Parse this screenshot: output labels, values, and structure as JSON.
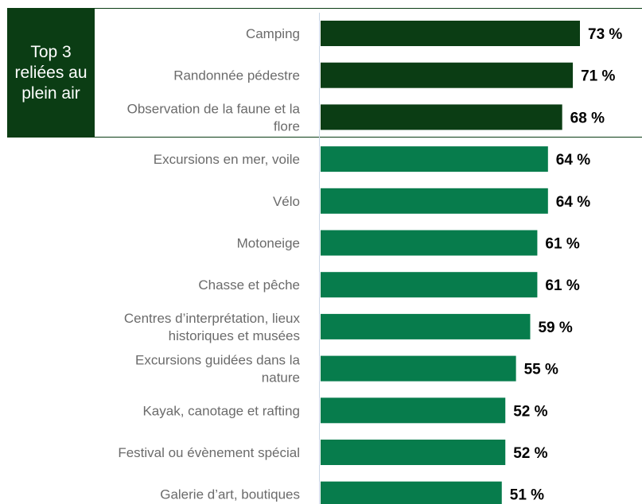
{
  "top3_box": {
    "label": "Top 3 reliées au plein air"
  },
  "colors": {
    "top3_bar": "#0b3d14",
    "other_bar": "#077c4c",
    "top3_box": "#0b3d14",
    "axis": "#c9d6e6"
  },
  "chart_data": {
    "type": "bar",
    "orientation": "horizontal",
    "categories": [
      "Camping",
      "Randonnée pédestre",
      "Observation de la faune et la flore",
      "Excursions en mer, voile",
      "Vélo",
      "Motoneige",
      "Chasse et pêche",
      "Centres d’interprétation, lieux historiques et musées",
      "Excursions guidées dans la nature",
      "Kayak, canotage et rafting",
      "Festival ou évènement spécial",
      "Galerie d’art, boutiques"
    ],
    "values": [
      73,
      71,
      68,
      64,
      64,
      61,
      61,
      59,
      55,
      52,
      52,
      51
    ],
    "value_labels": [
      "73 %",
      "71 %",
      "68 %",
      "64 %",
      "64 %",
      "61 %",
      "61 %",
      "59 %",
      "55 %",
      "52 %",
      "52 %",
      "51 %"
    ],
    "highlighted_count": 3,
    "xlim": [
      0,
      100
    ],
    "grid": false,
    "title": "",
    "xlabel": "",
    "ylabel": ""
  }
}
